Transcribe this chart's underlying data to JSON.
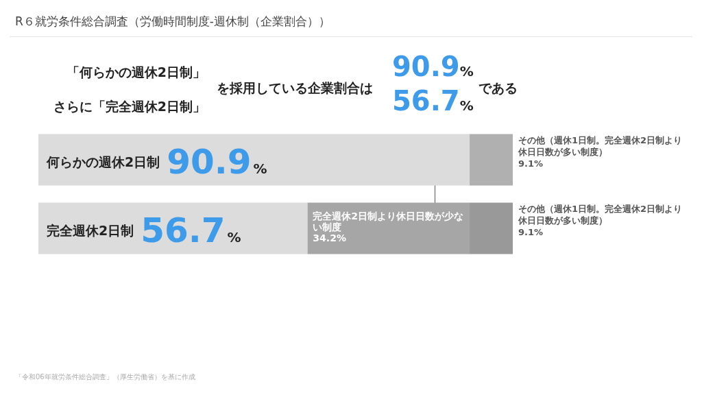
{
  "chart_data": {
    "type": "bar",
    "orientation": "horizontal",
    "stacked": true,
    "title": "R６就労条件総合調査（労働時間制度-週休制（企業割合））",
    "annotations": [
      "「何らかの週休2日制」",
      "さらに「完全週休2日制」",
      "を採用している企業割合は",
      "90.9%",
      "56.7%",
      "である",
      "「令和06年就労条件総合調査」（厚生労働省）を基に作成"
    ],
    "categories": [
      "何らかの週休2日制",
      "完全週休2日制"
    ],
    "xlim": [
      0,
      100
    ],
    "tick_labels": false,
    "grid": false,
    "legend": false,
    "series": [
      {
        "colors": [
          "#dcdcdc",
          "#dcdcdc"
        ],
        "values": [
          90.9,
          56.7
        ],
        "value_labels": [
          "90.9%",
          "56.7%"
        ]
      },
      {
        "name": "完全週休2日制より休日日数が少ない制度",
        "colors": [
          "#a6a6a6",
          "#a6a6a6"
        ],
        "values": [
          null,
          34.2
        ],
        "value_labels": [
          null,
          "34.2%"
        ]
      },
      {
        "name": "その他（週休1日制。完全週休2日制より休日日数が多い制度）",
        "colors": [
          "#b0b0b0",
          "#999999"
        ],
        "values": [
          9.1,
          9.1
        ],
        "value_labels": [
          "9.1%",
          "9.1%"
        ]
      }
    ]
  }
}
